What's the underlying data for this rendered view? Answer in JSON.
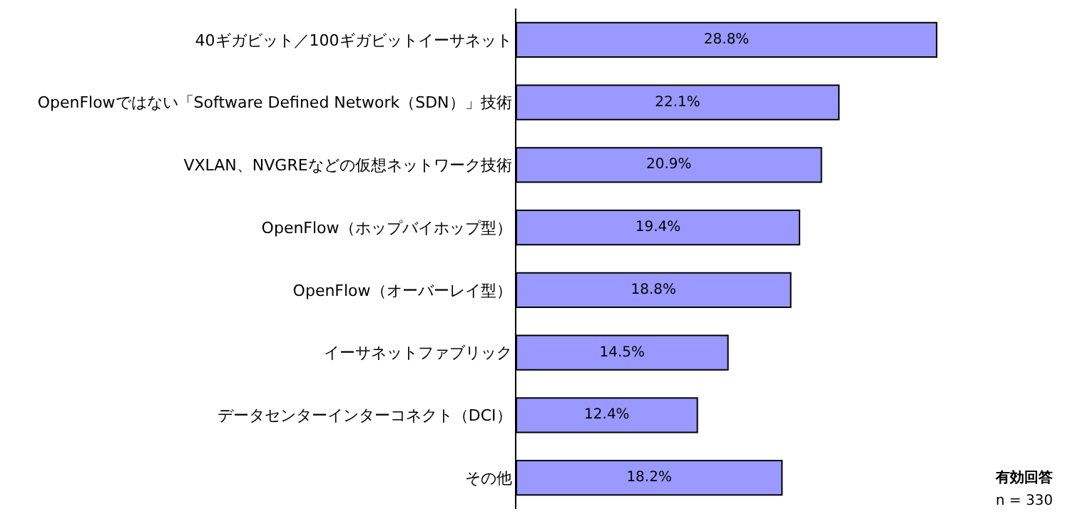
{
  "chart_data": {
    "type": "bar",
    "orientation": "horizontal",
    "categories": [
      "40ギガビット／100ギガビットイーサネット",
      "OpenFlowではない「Software Defined Network（SDN）」技術",
      "VXLAN、NVGREなどの仮想ネットワーク技術",
      "OpenFlow（ホップバイホップ型）",
      "OpenFlow（オーバーレイ型）",
      "イーサネットファブリック",
      "データセンターインターコネクト（DCI）",
      "その他"
    ],
    "values": [
      28.8,
      22.1,
      20.9,
      19.4,
      18.8,
      14.5,
      12.4,
      18.2
    ],
    "value_labels": [
      "28.8%",
      "22.1%",
      "20.9%",
      "19.4%",
      "18.8%",
      "14.5%",
      "12.4%",
      "18.2%"
    ],
    "color": "#9999ff",
    "annotations": [
      "有効回答",
      "n = 330"
    ]
  }
}
